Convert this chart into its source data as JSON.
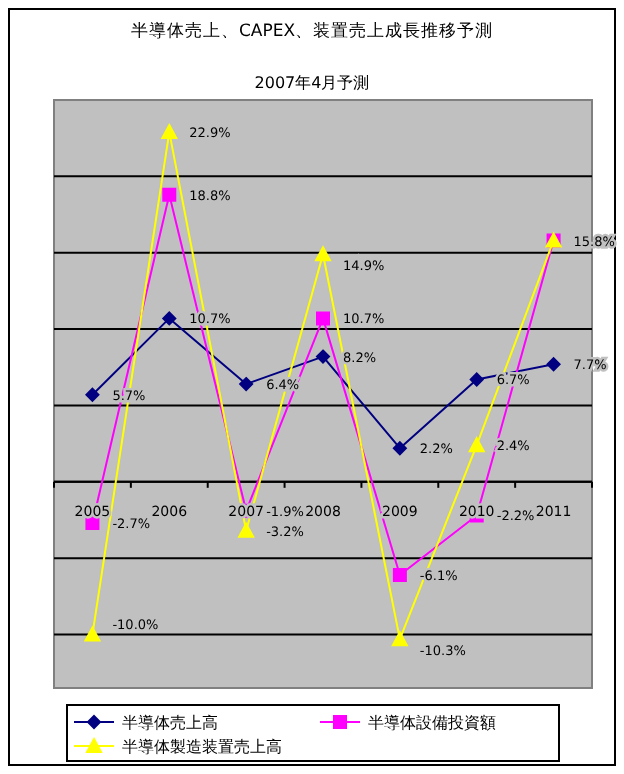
{
  "chart_data": {
    "type": "line",
    "title": "半導体売上、CAPEX、装置売上成長推移予測",
    "subtitle": "2007年4月予測",
    "categories": [
      "2005",
      "2006",
      "2007",
      "2008",
      "2009",
      "2010",
      "2011"
    ],
    "ylim": [
      -13.5,
      25
    ],
    "yticks": [
      {
        "value": -10,
        "label": null
      },
      {
        "value": -5,
        "label": null
      },
      {
        "value": 0,
        "label": null
      },
      {
        "value": 5,
        "label": null
      },
      {
        "value": 10,
        "label": null
      },
      {
        "value": 15,
        "label": null
      },
      {
        "value": 20,
        "label": null
      }
    ],
    "tick_labels": "x",
    "grid": "y",
    "legend": "bottom",
    "series": [
      {
        "name": "半導体売上高",
        "color": "#000080",
        "marker": "diamond",
        "values": [
          5.7,
          10.7,
          6.4,
          8.2,
          2.2,
          6.7,
          7.7
        ],
        "value_labels": [
          "5.7%",
          "10.7%",
          "6.4%",
          "8.2%",
          "2.2%",
          "6.7%",
          "7.7%"
        ]
      },
      {
        "name": "半導体設備投資額",
        "color": "#ff00ff",
        "marker": "square",
        "values": [
          -2.7,
          18.8,
          -1.9,
          10.7,
          -6.1,
          -2.2,
          15.8
        ],
        "value_labels": [
          "-2.7%",
          "18.8%",
          "-1.9%",
          "10.7%",
          "-6.1%",
          "-2.2%",
          "15.8%"
        ]
      },
      {
        "name": "半導体製造装置売上高",
        "color": "#ffff00",
        "marker": "triangle",
        "values": [
          -10.0,
          22.9,
          -3.2,
          14.9,
          -10.3,
          2.4,
          15.8
        ],
        "value_labels": [
          "-10.0%",
          "22.9%",
          "-3.2%",
          "14.9%",
          "-10.3%",
          "2.4%",
          null
        ]
      }
    ]
  }
}
